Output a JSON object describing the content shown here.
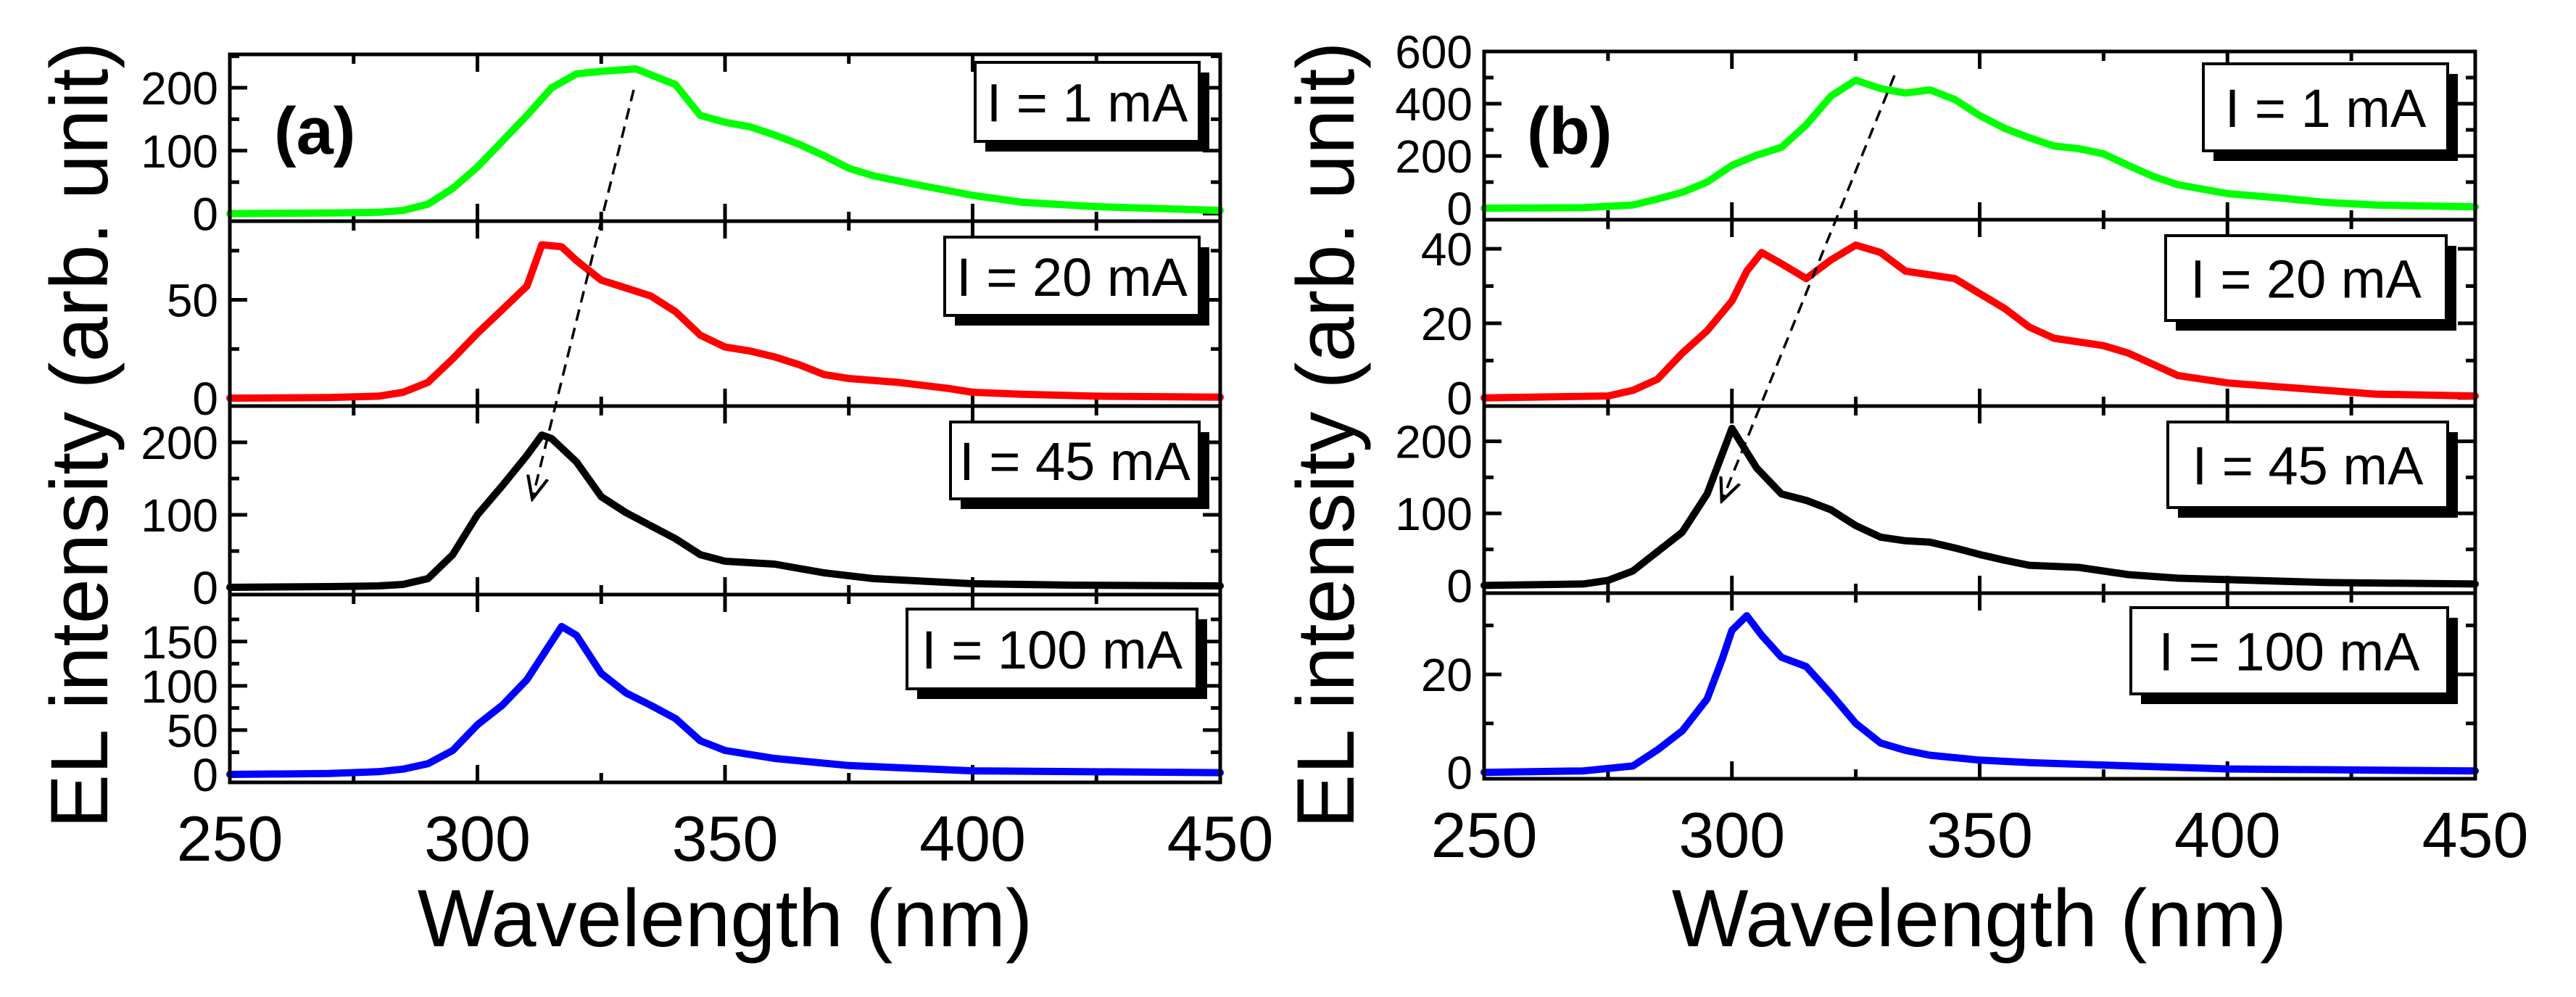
{
  "chart_data": [
    {
      "type": "line",
      "panel_label": "(a)",
      "xlabel": "Wavelength (nm)",
      "ylabel": "EL intensity (arb. unit)",
      "xlim": [
        250,
        450
      ],
      "xticks": [
        "250",
        "300",
        "350",
        "400",
        "450"
      ],
      "arrow": {
        "from": [
          332,
          "I = 1 mA",
          195
        ],
        "to": [
          311,
          "I = 45 mA",
          120
        ],
        "style": "dashed"
      },
      "subplots": [
        {
          "legend": "I = 1 mA",
          "color": "#00ff00",
          "ylim": [
            -12,
            253
          ],
          "yticks": [
            0,
            100,
            200
          ],
          "yminor": [
            50,
            150,
            250
          ],
          "x": [
            250,
            270,
            280,
            285,
            290,
            295,
            300,
            305,
            310,
            315,
            320,
            325,
            332,
            340,
            345,
            350,
            355,
            360,
            365,
            370,
            375,
            380,
            385,
            390,
            400,
            410,
            425,
            450
          ],
          "y": [
            0,
            1,
            2,
            5,
            15,
            40,
            74,
            115,
            156,
            200,
            222,
            226,
            230,
            205,
            156,
            145,
            138,
            125,
            110,
            92,
            72,
            60,
            52,
            44,
            29,
            18,
            11,
            5
          ]
        },
        {
          "legend": "I = 20 mA",
          "color": "#ff0000",
          "ylim": [
            -4,
            90
          ],
          "yticks": [
            0,
            50
          ],
          "yminor": [
            25,
            75
          ],
          "x": [
            250,
            270,
            280,
            285,
            290,
            295,
            300,
            305,
            310,
            313,
            317,
            320,
            325,
            330,
            335,
            340,
            345,
            350,
            355,
            360,
            365,
            370,
            375,
            385,
            395,
            400,
            410,
            425,
            450
          ],
          "y": [
            0,
            0.3,
            1,
            3,
            8,
            20,
            33,
            45,
            57,
            78,
            77,
            70,
            60,
            56,
            52,
            44,
            32,
            26,
            24,
            21,
            17,
            12,
            10,
            8,
            5,
            3,
            2,
            1,
            0.5
          ]
        },
        {
          "legend": "I = 45 mA",
          "color": "#000000",
          "ylim": [
            -10,
            250
          ],
          "yticks": [
            0,
            100,
            200
          ],
          "yminor": [
            50,
            150
          ],
          "x": [
            250,
            270,
            280,
            285,
            290,
            295,
            300,
            305,
            310,
            313,
            315,
            320,
            325,
            330,
            340,
            345,
            350,
            360,
            370,
            380,
            400,
            420,
            450
          ],
          "y": [
            0,
            1,
            2,
            4,
            12,
            45,
            100,
            140,
            182,
            210,
            205,
            173,
            125,
            103,
            67,
            45,
            36,
            32,
            20,
            12,
            5,
            3,
            2
          ]
        },
        {
          "legend": "I = 100 mA",
          "color": "#0000ff",
          "ylim": [
            -9,
            203
          ],
          "yticks": [
            0,
            50,
            100,
            150
          ],
          "yminor": [
            25,
            75,
            125,
            175
          ],
          "x": [
            250,
            270,
            280,
            285,
            290,
            295,
            300,
            305,
            310,
            315,
            317,
            320,
            325,
            330,
            335,
            340,
            345,
            350,
            360,
            375,
            400,
            450
          ],
          "y": [
            0,
            1,
            3,
            6,
            12,
            27,
            56,
            78,
            107,
            150,
            167,
            157,
            114,
            92,
            78,
            63,
            38,
            27,
            18,
            10,
            4,
            2
          ]
        }
      ]
    },
    {
      "type": "line",
      "panel_label": "(b)",
      "xlabel": "Wavelength (nm)",
      "ylabel": "EL intensity (arb. unit)",
      "xlim": [
        250,
        450
      ],
      "xticks": [
        "250",
        "300",
        "350",
        "400",
        "450"
      ],
      "arrow": {
        "from": [
          332,
          "I = 1 mA",
          520
        ],
        "to": [
          297,
          "I = 45 mA",
          120
        ],
        "style": "dashed"
      },
      "subplots": [
        {
          "legend": "I = 1 mA",
          "color": "#00ff00",
          "ylim": [
            -44,
            600
          ],
          "yticks": [
            0,
            200,
            400,
            600
          ],
          "yminor": [
            100,
            300,
            500
          ],
          "x": [
            250,
            270,
            280,
            285,
            290,
            295,
            300,
            305,
            310,
            315,
            320,
            325,
            330,
            335,
            340,
            345,
            350,
            355,
            360,
            365,
            370,
            375,
            380,
            385,
            390,
            400,
            410,
            420,
            430,
            450
          ],
          "y": [
            0,
            2,
            12,
            35,
            61,
            100,
            164,
            203,
            233,
            319,
            429,
            490,
            458,
            441,
            453,
            416,
            355,
            306,
            270,
            238,
            228,
            208,
            164,
            122,
            90,
            56,
            40,
            22,
            12,
            5
          ]
        },
        {
          "legend": "I = 20 mA",
          "color": "#ff0000",
          "ylim": [
            -2.2,
            47.8
          ],
          "yticks": [
            0,
            20,
            40
          ],
          "yminor": [
            10,
            30
          ],
          "x": [
            250,
            275,
            280,
            285,
            290,
            295,
            300,
            303,
            306,
            310,
            315,
            320,
            325,
            330,
            335,
            340,
            345,
            350,
            355,
            360,
            365,
            370,
            375,
            380,
            385,
            390,
            400,
            410,
            420,
            430,
            450
          ],
          "y": [
            0,
            0.5,
            2,
            5,
            12,
            18,
            26,
            34,
            39,
            36,
            32,
            37,
            41,
            39,
            34,
            33,
            32,
            28,
            24,
            19,
            16,
            15,
            14,
            12,
            9,
            6,
            4,
            3,
            2,
            1,
            0.5
          ]
        },
        {
          "legend": "I = 45 mA",
          "color": "#000000",
          "ylim": [
            -10.7,
            249
          ],
          "yticks": [
            0,
            100,
            200
          ],
          "yminor": [
            50,
            150
          ],
          "x": [
            250,
            270,
            275,
            280,
            285,
            290,
            295,
            300,
            305,
            310,
            315,
            320,
            325,
            330,
            335,
            340,
            345,
            350,
            355,
            360,
            370,
            380,
            390,
            400,
            420,
            450
          ],
          "y": [
            0,
            2,
            7,
            20,
            47,
            74,
            127,
            218,
            163,
            127,
            118,
            105,
            83,
            67,
            62,
            60,
            52,
            43,
            35,
            28,
            25,
            15,
            10,
            8,
            4,
            2
          ]
        },
        {
          "legend": "I = 100 mA",
          "color": "#0000ff",
          "ylim": [
            -1.3,
            36.6
          ],
          "yticks": [
            0,
            20
          ],
          "yminor": [
            10,
            30
          ],
          "x": [
            250,
            270,
            280,
            285,
            290,
            295,
            298,
            300,
            303,
            306,
            310,
            315,
            320,
            325,
            330,
            335,
            340,
            350,
            360,
            375,
            400,
            450
          ],
          "y": [
            0,
            0.3,
            1.3,
            4.6,
            8.5,
            15,
            23,
            29,
            32,
            28,
            23.5,
            21.6,
            16,
            10,
            6,
            4.5,
            3.5,
            2.5,
            2,
            1.5,
            0.7,
            0.3
          ]
        }
      ]
    }
  ]
}
